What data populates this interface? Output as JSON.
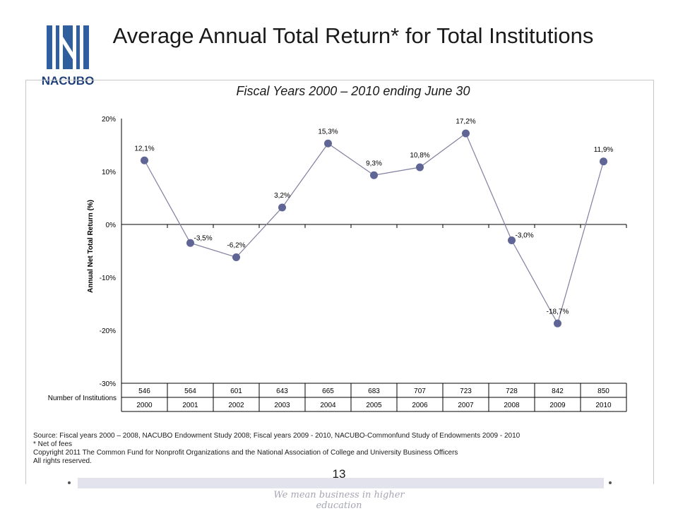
{
  "logo": {
    "text": "NACUBO",
    "brand_color": "#2f5f9e"
  },
  "title": "Average Annual Total Return* for Total Institutions",
  "subtitle": "Fiscal Years 2000 – 2010 ending June 30",
  "chart_data": {
    "type": "line",
    "ylabel": "Annual Net Total Return (%)",
    "ylim": [
      -30,
      20
    ],
    "yticks": [
      "20%",
      "10%",
      "0%",
      "-10%",
      "-20%",
      "-30%"
    ],
    "ytick_values": [
      20,
      10,
      0,
      -10,
      -20,
      -30
    ],
    "x": [
      "2000",
      "2001",
      "2002",
      "2003",
      "2004",
      "2005",
      "2006",
      "2007",
      "2008",
      "2009",
      "2010"
    ],
    "values": [
      12.1,
      -3.5,
      -6.2,
      3.2,
      15.3,
      9.3,
      10.8,
      17.2,
      -3.0,
      -18.7,
      11.9
    ],
    "data_labels": [
      "12,1%",
      "-3,5%",
      "-6,2%",
      "3,2%",
      "15,3%",
      "9,3%",
      "10,8%",
      "17,2%",
      "-3,0%",
      "-18,7%",
      "11,9%"
    ],
    "table_row_label": "Number of Institutions",
    "institutions": [
      "546",
      "564",
      "601",
      "643",
      "665",
      "683",
      "707",
      "723",
      "728",
      "842",
      "850"
    ],
    "line_color": "#7f7f9f",
    "marker_color": "#5f6595",
    "grid": false
  },
  "source_lines": [
    "Source: Fiscal years 2000 – 2008, NACUBO Endowment Study 2008; Fiscal years 2009 - 2010, NACUBO-Commonfund Study of Endowments 2009 - 2010",
    "* Net of fees",
    "Copyright 2011 The Common Fund for Nonprofit Organizations and the National Association of College and University Business Officers",
    "All rights reserved."
  ],
  "page_number": "13",
  "tagline": "We mean business in higher education"
}
